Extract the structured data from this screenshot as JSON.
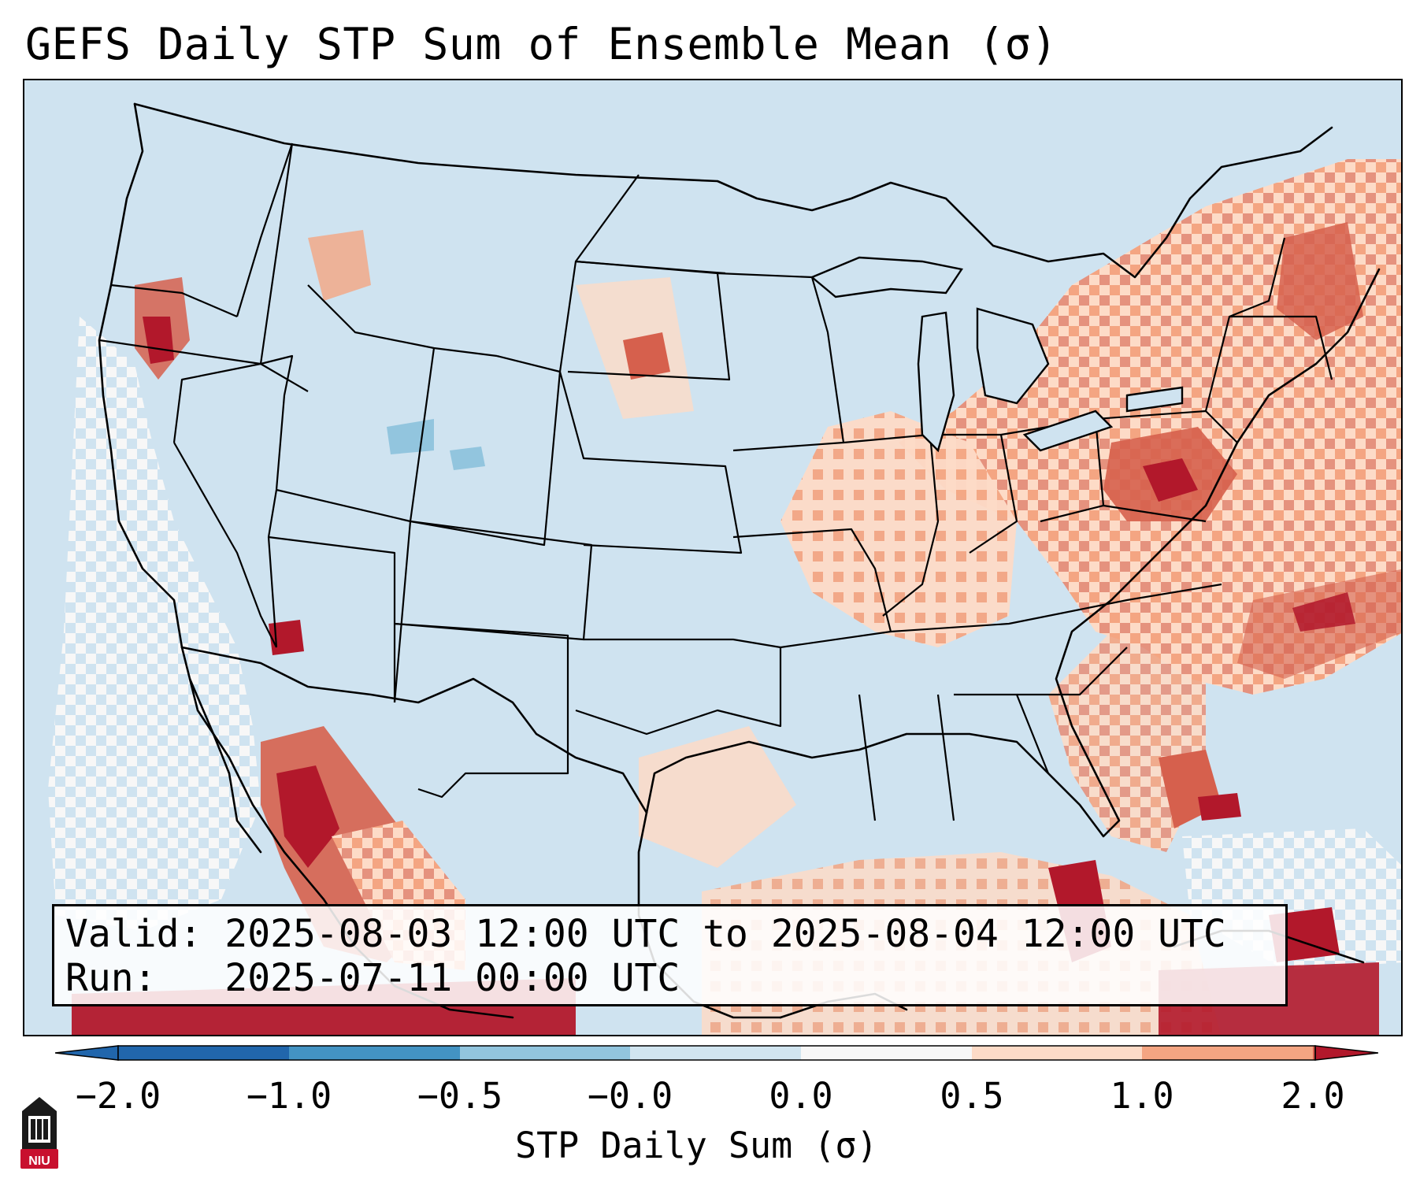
{
  "title": "GEFS Daily STP Sum of Ensemble Mean (σ)",
  "valid_line": "Valid: 2025-08-03 12:00 UTC to 2025-08-04 12:00 UTC",
  "run_line": "Run:   2025-07-11 00:00 UTC",
  "colorbar": {
    "label": "STP Daily Sum (σ)",
    "ticks": [
      "−2.0",
      "−1.0",
      "−0.5",
      "−0.0",
      "0.0",
      "0.5",
      "1.0",
      "2.0"
    ],
    "colors": [
      "#2166ac",
      "#4393c3",
      "#92c5de",
      "#d1e5f0",
      "#f7f7f7",
      "#fddbc7",
      "#f4a582",
      "#d6604d",
      "#b2182b"
    ]
  },
  "logo": {
    "text": "NIU",
    "color": "#c8102e"
  },
  "map": {
    "background_color": "#d1e5f0",
    "anomaly_regions": [
      {
        "name": "Northeast",
        "level": "positive-high"
      },
      {
        "name": "Mid-Atlantic",
        "level": "positive-high"
      },
      {
        "name": "Western Atlantic",
        "level": "positive-mid"
      },
      {
        "name": "Southeast",
        "level": "positive-mid"
      },
      {
        "name": "Gulf of Mexico",
        "level": "positive-low"
      },
      {
        "name": "Northwest Mexico",
        "level": "positive-high"
      },
      {
        "name": "Eastern Pacific",
        "level": "near-zero"
      }
    ]
  }
}
